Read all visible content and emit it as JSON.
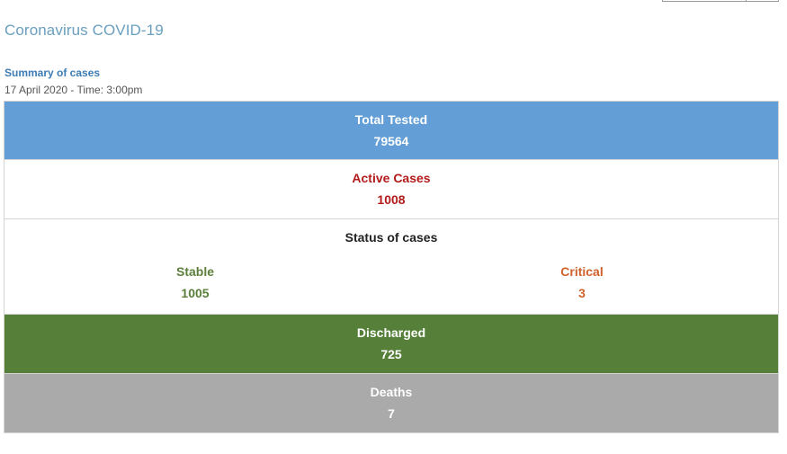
{
  "page": {
    "title": "Coronavirus COVID-19",
    "summary_heading": "Summary of cases",
    "summary_date": "17 April 2020 - Time: 3:00pm"
  },
  "stats": {
    "total_tested": {
      "label": "Total Tested",
      "value": "79564"
    },
    "active_cases": {
      "label": "Active Cases",
      "value": "1008"
    },
    "status": {
      "label": "Status of cases",
      "stable": {
        "label": "Stable",
        "value": "1005"
      },
      "critical": {
        "label": "Critical",
        "value": "3"
      }
    },
    "discharged": {
      "label": "Discharged",
      "value": "725"
    },
    "deaths": {
      "label": "Deaths",
      "value": "7"
    }
  },
  "colors": {
    "title": "#6a9fbf",
    "summary_heading": "#3d7cb4",
    "tested_bg": "#639fd6",
    "active_text": "#b31b1b",
    "stable_text": "#5b7f3a",
    "critical_text": "#d0612a",
    "discharged_bg": "#568039",
    "deaths_bg": "#aaaaaa"
  }
}
